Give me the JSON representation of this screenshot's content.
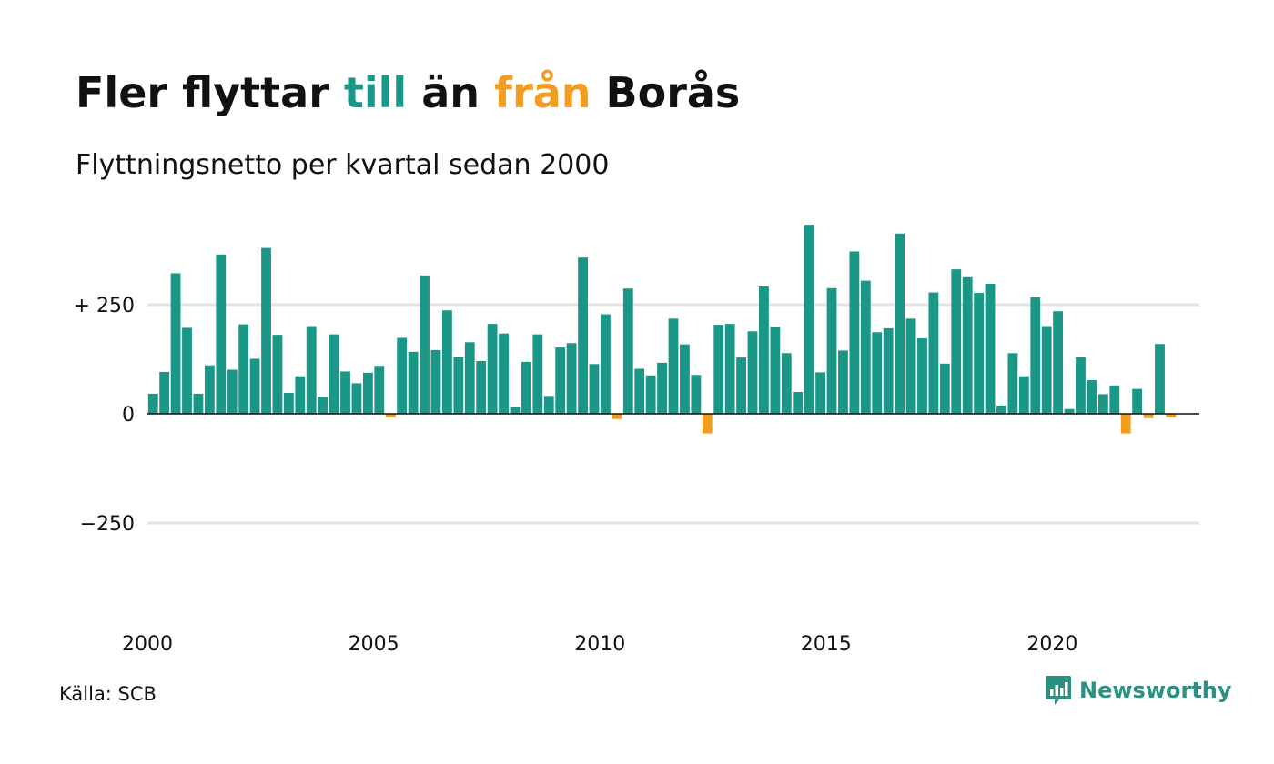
{
  "header": {
    "title_parts": [
      {
        "text": "Fler flyttar ",
        "color": "#111111"
      },
      {
        "text": "till",
        "color": "#1a9786"
      },
      {
        "text": " än ",
        "color": "#111111"
      },
      {
        "text": "från",
        "color": "#f29d22"
      },
      {
        "text": " Borås",
        "color": "#111111"
      }
    ],
    "subtitle": "Flyttningsnetto per kvartal sedan 2000"
  },
  "footer": {
    "source": "Källa: SCB",
    "brand": "Newsworthy",
    "brand_icon": "newsworthy-logo-icon"
  },
  "colors": {
    "positive": "#1a9786",
    "negative": "#f29d22",
    "grid": "#e3e3e3",
    "zero_line": "#111111",
    "brand": "#2a9081"
  },
  "chart_data": {
    "type": "bar",
    "title": "Fler flyttar till än från Borås",
    "subtitle": "Flyttningsnetto per kvartal sedan 2000",
    "xlabel": "",
    "ylabel": "",
    "ylim": [
      -450,
      450
    ],
    "yticks": [
      {
        "value": 250,
        "label": "+ 250"
      },
      {
        "value": 0,
        "label": "0"
      },
      {
        "value": -250,
        "label": "−250"
      }
    ],
    "xlim": [
      2000,
      2023.25
    ],
    "xticks": [
      {
        "value": 2000,
        "label": "2000"
      },
      {
        "value": 2005,
        "label": "2005"
      },
      {
        "value": 2010,
        "label": "2010"
      },
      {
        "value": 2015,
        "label": "2015"
      },
      {
        "value": 2020,
        "label": "2020"
      }
    ],
    "grid": true,
    "legend": "none",
    "quarters_start": "2000 Q1",
    "values": [
      46,
      96,
      322,
      197,
      46,
      111,
      365,
      101,
      205,
      126,
      380,
      181,
      48,
      86,
      201,
      39,
      182,
      97,
      70,
      94,
      110,
      -8,
      174,
      142,
      317,
      146,
      237,
      130,
      164,
      121,
      206,
      184,
      15,
      119,
      182,
      41,
      152,
      162,
      358,
      114,
      228,
      -12,
      287,
      103,
      88,
      117,
      218,
      159,
      89,
      -45,
      204,
      206,
      129,
      189,
      292,
      199,
      139,
      50,
      433,
      95,
      288,
      145,
      372,
      305,
      187,
      196,
      413,
      218,
      173,
      278,
      115,
      331,
      313,
      277,
      298,
      19,
      139,
      86,
      267,
      201,
      235,
      11,
      130,
      77,
      45,
      65,
      -45,
      57,
      -10,
      160,
      -8
    ]
  }
}
